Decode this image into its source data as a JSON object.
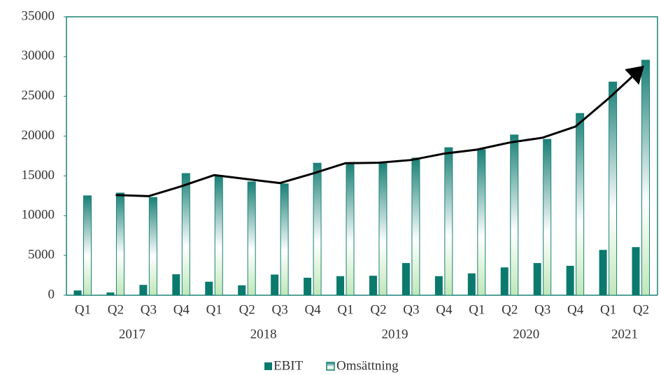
{
  "chart_data": {
    "type": "bar",
    "categories": [
      "Q1",
      "Q2",
      "Q3",
      "Q4",
      "Q1",
      "Q2",
      "Q3",
      "Q4",
      "Q1",
      "Q2",
      "Q3",
      "Q4",
      "Q1",
      "Q2",
      "Q3",
      "Q4",
      "Q1",
      "Q2"
    ],
    "year_groups": [
      {
        "label": "2017",
        "count": 4
      },
      {
        "label": "2018",
        "count": 4
      },
      {
        "label": "2019",
        "count": 4
      },
      {
        "label": "2020",
        "count": 4
      },
      {
        "label": "2021",
        "count": 2
      }
    ],
    "series": [
      {
        "name": "EBIT",
        "color": "#0b7a6c",
        "values": [
          600,
          350,
          1300,
          2640,
          1700,
          1250,
          2600,
          2200,
          2400,
          2450,
          4050,
          2400,
          2750,
          3500,
          4050,
          3700,
          5700,
          6050
        ]
      },
      {
        "name": "Omsättning",
        "color": "#1a8076",
        "values": [
          12500,
          12850,
          12300,
          15300,
          15050,
          14250,
          14000,
          16600,
          16550,
          16700,
          17250,
          18550,
          18300,
          20150,
          19600,
          22850,
          26800,
          29550
        ]
      }
    ],
    "trend_line": {
      "color": "#000000",
      "values": [
        null,
        12600,
        12450,
        13700,
        15100,
        14600,
        14100,
        15300,
        16600,
        16650,
        17000,
        17800,
        18300,
        19200,
        19800,
        21200,
        24700,
        28500
      ]
    },
    "ylim": [
      0,
      35000
    ],
    "yticks": [
      0,
      5000,
      10000,
      15000,
      20000,
      25000,
      30000,
      35000
    ],
    "legend": "bottom"
  }
}
